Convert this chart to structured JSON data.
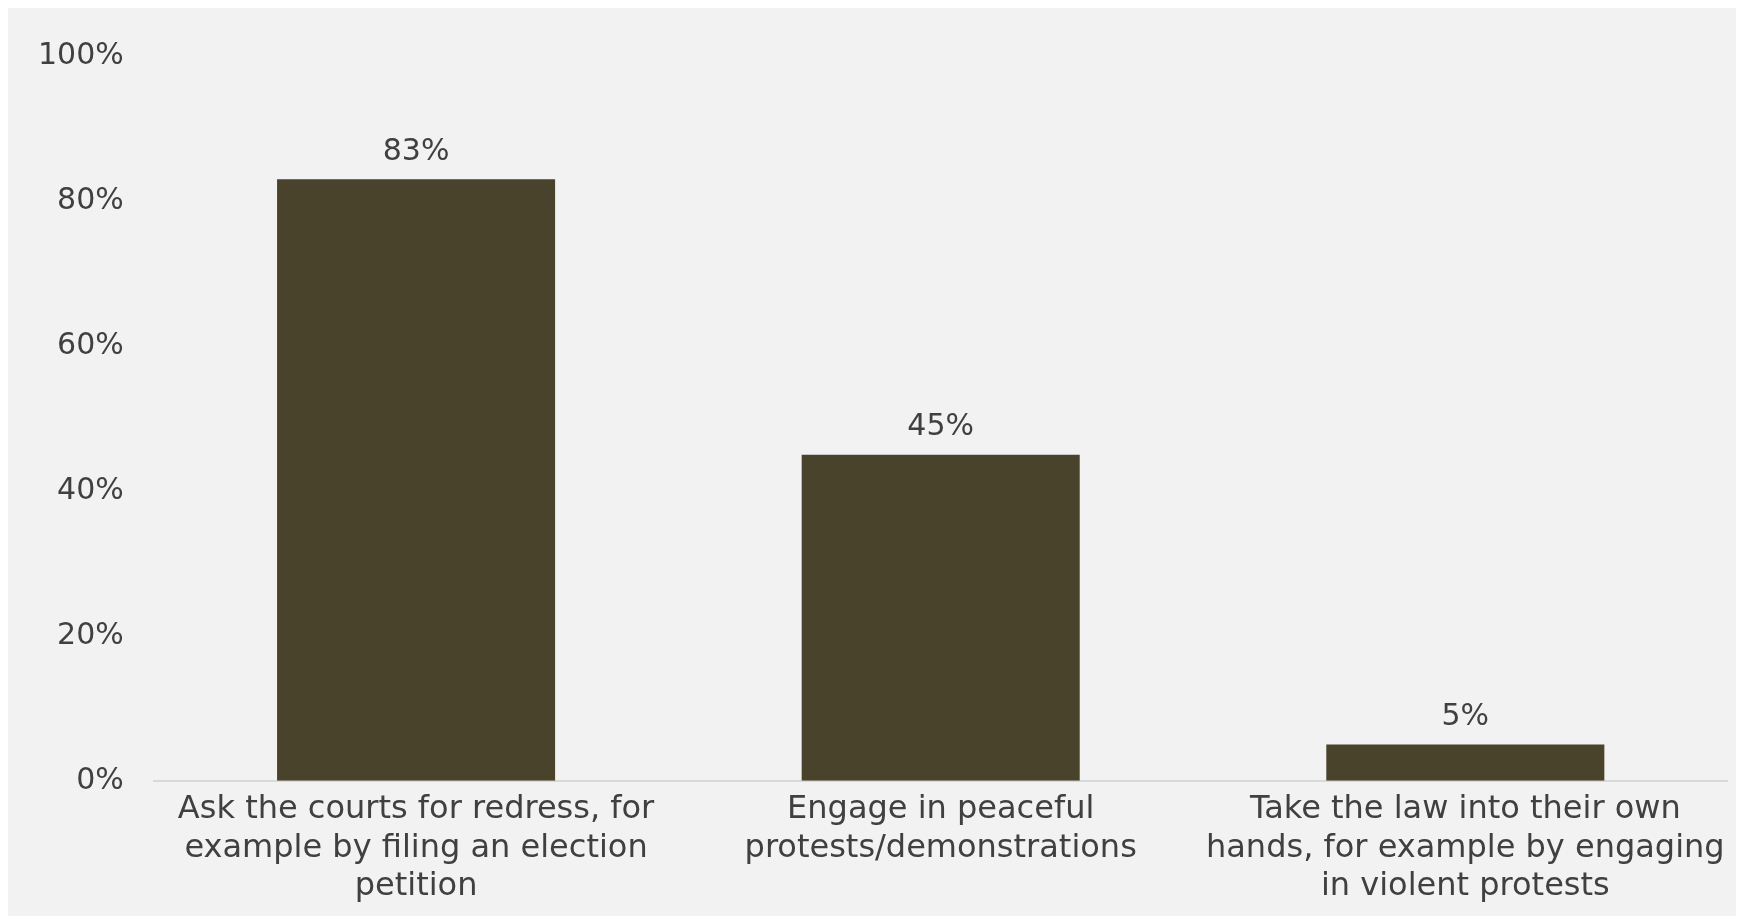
{
  "chart_data": {
    "type": "bar",
    "categories": [
      "Ask the courts for redress, for example by filing an election petition",
      "Engage in peaceful protests/demonstrations",
      "Take the law into their own hands, for example by engaging in violent protests"
    ],
    "values": [
      83,
      45,
      5
    ],
    "color": "#4a432b",
    "value_labels": [
      "83%",
      "45%",
      "5%"
    ],
    "ylim": [
      0,
      100
    ],
    "yticks": [
      {
        "value": 0,
        "label": "0%"
      },
      {
        "value": 20,
        "label": "20%"
      },
      {
        "value": 40,
        "label": "40%"
      },
      {
        "value": 60,
        "label": "60%"
      },
      {
        "value": 80,
        "label": "80%"
      },
      {
        "value": 100,
        "label": "100%"
      }
    ],
    "grid": false,
    "legend": false
  }
}
